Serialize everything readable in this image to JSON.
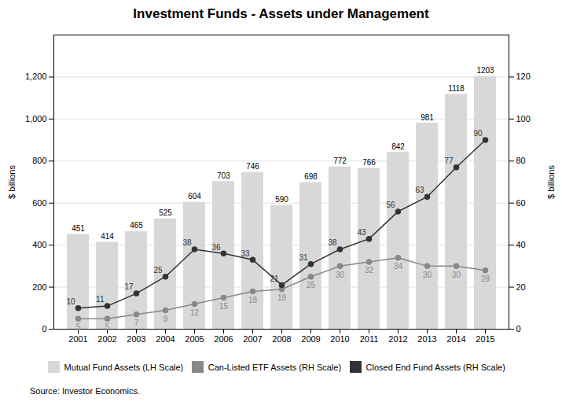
{
  "chart_data": {
    "type": "bar",
    "title": "Investment Funds - Assets under Management",
    "caption": "Source: Investor Economics.",
    "categories": [
      "2001",
      "2002",
      "2003",
      "2004",
      "2005",
      "2006",
      "2007",
      "2008",
      "2009",
      "2010",
      "2011",
      "2012",
      "2013",
      "2014",
      "2015"
    ],
    "series": [
      {
        "name": "Mutual Fund Assets (LH Scale)",
        "type": "bar",
        "color": "#d8d8d8",
        "values": [
          451,
          414,
          465,
          525,
          604,
          703,
          746,
          590,
          698,
          772,
          766,
          842,
          981,
          1118,
          1203
        ]
      },
      {
        "name": "Can-Listed ETF Assets (RH Scale)",
        "type": "line",
        "axis": "y2",
        "color": "#888888",
        "marker": "circle",
        "line_style": "solid",
        "values": [
          5,
          5,
          7,
          9,
          12,
          15,
          18,
          19,
          25,
          30,
          32,
          34,
          30,
          30,
          28
        ]
      },
      {
        "name": "Closed End Fund Assets (RH Scale)",
        "type": "line",
        "axis": "y2",
        "color": "#333333",
        "marker": "circle",
        "line_style": "solid",
        "values": [
          10,
          11,
          17,
          25,
          38,
          36,
          33,
          21,
          31,
          38,
          43,
          56,
          63,
          77,
          90
        ]
      }
    ],
    "ylabel": "$ billions",
    "y2label": "$ billions",
    "ylim": [
      0,
      1400
    ],
    "yticks": [
      0,
      200,
      400,
      600,
      800,
      {
        "value": 1000,
        "label": "1,000"
      },
      {
        "value": 1200,
        "label": "1,200"
      }
    ],
    "y2lim": [
      0,
      140
    ],
    "y2ticks": [
      0,
      20,
      40,
      60,
      80,
      100,
      120
    ],
    "grid": true,
    "data_labels": true,
    "legend": "bottom"
  }
}
